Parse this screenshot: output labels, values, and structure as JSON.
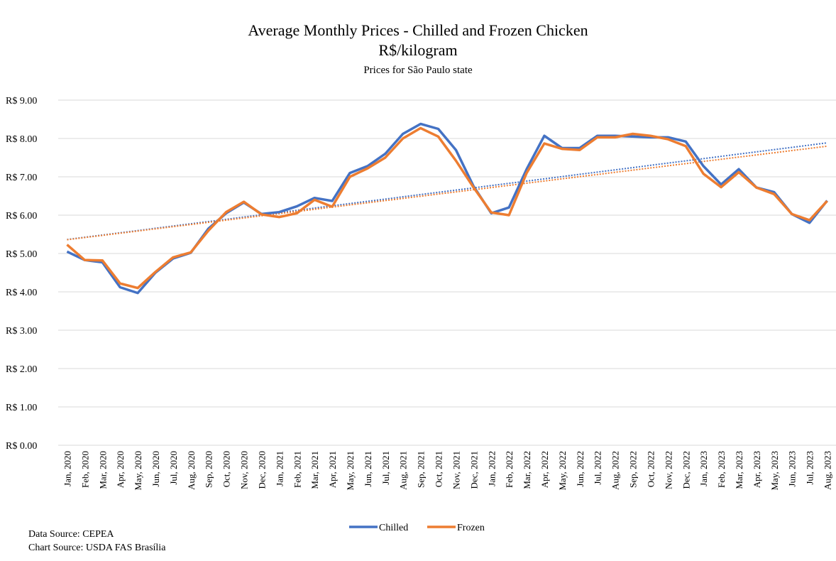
{
  "chart_data": {
    "type": "line",
    "title": "Average Monthly Prices - Chilled and Frozen Chicken",
    "subtitle": "R$/kilogram",
    "subtitle2": "Prices for São Paulo state",
    "notes": [
      "Data Source: CEPEA",
      "Chart Source: USDA FAS Brasília"
    ],
    "categories": [
      "Jan, 2020",
      "Feb, 2020",
      "Mar, 2020",
      "Apr, 2020",
      "May, 2020",
      "Jun, 2020",
      "Jul, 2020",
      "Aug, 2020",
      "Sep, 2020",
      "Oct, 2020",
      "Nov, 2020",
      "Dec, 2020",
      "Jan, 2021",
      "Feb, 2021",
      "Mar, 2021",
      "Apr, 2021",
      "May, 2021",
      "Jun, 2021",
      "Jul, 2021",
      "Aug, 2021",
      "Sep, 2021",
      "Oct, 2021",
      "Nov, 2021",
      "Dec, 2021",
      "Jan, 2022",
      "Feb, 2022",
      "Mar, 2022",
      "Apr, 2022",
      "May, 2022",
      "Jun, 2022",
      "Jul, 2022",
      "Aug, 2022",
      "Sep, 2022",
      "Oct, 2022",
      "Nov, 2022",
      "Dec, 2022",
      "Jan, 2023",
      "Feb, 2023",
      "Mar, 2023",
      "Apr, 2023",
      "May, 2023",
      "Jun, 2023",
      "Jul, 2023",
      "Aug, 2023"
    ],
    "series": [
      {
        "name": "Chilled",
        "color": "#4472c4",
        "values": [
          5.05,
          4.83,
          4.77,
          4.12,
          3.97,
          4.5,
          4.87,
          5.02,
          5.65,
          6.05,
          6.33,
          6.03,
          6.08,
          6.23,
          6.45,
          6.37,
          7.1,
          7.28,
          7.6,
          8.12,
          8.38,
          8.25,
          7.7,
          6.75,
          6.05,
          6.2,
          7.2,
          8.07,
          7.75,
          7.75,
          8.07,
          8.07,
          8.05,
          8.03,
          8.03,
          7.92,
          7.28,
          6.8,
          7.2,
          6.72,
          6.6,
          6.03,
          5.8,
          6.38
        ]
      },
      {
        "name": "Frozen",
        "color": "#ed7d31",
        "values": [
          5.23,
          4.83,
          4.82,
          4.22,
          4.1,
          4.52,
          4.9,
          5.03,
          5.6,
          6.08,
          6.35,
          6.02,
          5.95,
          6.05,
          6.4,
          6.22,
          7.0,
          7.22,
          7.5,
          8.0,
          8.27,
          8.05,
          7.42,
          6.72,
          6.07,
          6.0,
          7.1,
          7.87,
          7.73,
          7.7,
          8.03,
          8.03,
          8.12,
          8.07,
          7.98,
          7.8,
          7.08,
          6.73,
          7.12,
          6.72,
          6.55,
          6.03,
          5.87,
          6.37
        ]
      }
    ],
    "trendline": true,
    "ylim": [
      0,
      9
    ],
    "yticks": [
      {
        "value": 0,
        "label": "R$ 0.00"
      },
      {
        "value": 1,
        "label": "R$ 1.00"
      },
      {
        "value": 2,
        "label": "R$ 2.00"
      },
      {
        "value": 3,
        "label": "R$ 3.00"
      },
      {
        "value": 4,
        "label": "R$ 4.00"
      },
      {
        "value": 5,
        "label": "R$ 5.00"
      },
      {
        "value": 6,
        "label": "R$ 6.00"
      },
      {
        "value": 7,
        "label": "R$ 7.00"
      },
      {
        "value": 8,
        "label": "R$ 8.00"
      },
      {
        "value": 9,
        "label": "R$ 9.00"
      }
    ],
    "grid": true,
    "legend": "bottom"
  }
}
